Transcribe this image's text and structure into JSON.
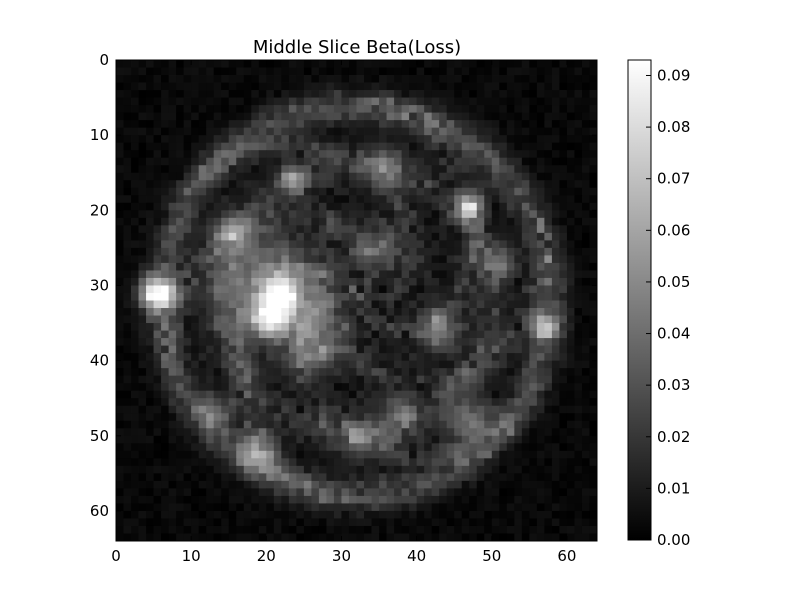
{
  "chart_data": {
    "type": "heatmap",
    "title": "Middle Slice Beta(Loss)",
    "xlabel": "",
    "ylabel": "",
    "colormap": "gray",
    "grid_size": [
      64,
      64
    ],
    "xlim": [
      0,
      64
    ],
    "ylim": [
      64,
      0
    ],
    "x_ticks": [
      0,
      10,
      20,
      30,
      40,
      50,
      60
    ],
    "x_tick_labels": [
      "0",
      "10",
      "20",
      "30",
      "40",
      "50",
      "60"
    ],
    "y_ticks": [
      0,
      10,
      20,
      30,
      40,
      50,
      60
    ],
    "y_tick_labels": [
      "0",
      "10",
      "20",
      "30",
      "40",
      "50",
      "60"
    ],
    "colorbar": {
      "min": 0.0,
      "max": 0.093,
      "ticks": [
        0.0,
        0.01,
        0.02,
        0.03,
        0.04,
        0.05,
        0.06,
        0.07,
        0.08,
        0.09
      ],
      "tick_labels": [
        "0.00",
        "0.01",
        "0.02",
        "0.03",
        "0.04",
        "0.05",
        "0.06",
        "0.07",
        "0.08",
        "0.09"
      ]
    },
    "features": {
      "background_noise_level": 0.006,
      "disk": {
        "center": [
          32,
          32
        ],
        "radius": 27,
        "base_level": 0.017
      },
      "outer_ring": {
        "center": [
          32,
          32
        ],
        "radius": 26,
        "width": 1.6,
        "level": 0.03
      },
      "mid_ring": {
        "center": [
          32,
          32
        ],
        "radius": 18,
        "width": 1.4,
        "level": 0.02
      },
      "blobs": [
        {
          "x": 5.5,
          "y": 31,
          "sigma": 1.6,
          "peak": 0.088
        },
        {
          "x": 22,
          "y": 31.5,
          "sigma": 1.3,
          "peak": 0.08
        },
        {
          "x": 20.5,
          "y": 34.5,
          "sigma": 1.4,
          "peak": 0.07
        },
        {
          "x": 20,
          "y": 30,
          "sigma": 4.5,
          "peak": 0.045
        },
        {
          "x": 25,
          "y": 34,
          "sigma": 3.5,
          "peak": 0.03
        },
        {
          "x": 47,
          "y": 19.5,
          "sigma": 1.2,
          "peak": 0.075
        },
        {
          "x": 57,
          "y": 35.5,
          "sigma": 1.3,
          "peak": 0.06
        },
        {
          "x": 23.5,
          "y": 16,
          "sigma": 1.3,
          "peak": 0.05
        },
        {
          "x": 19,
          "y": 52,
          "sigma": 1.8,
          "peak": 0.045
        },
        {
          "x": 13,
          "y": 47,
          "sigma": 1.6,
          "peak": 0.035
        },
        {
          "x": 47,
          "y": 48,
          "sigma": 2.0,
          "peak": 0.04
        },
        {
          "x": 38,
          "y": 47,
          "sigma": 1.7,
          "peak": 0.03
        },
        {
          "x": 43,
          "y": 36,
          "sigma": 2.0,
          "peak": 0.035
        },
        {
          "x": 51,
          "y": 27,
          "sigma": 1.6,
          "peak": 0.035
        },
        {
          "x": 35,
          "y": 25,
          "sigma": 2.2,
          "peak": 0.03
        },
        {
          "x": 27,
          "y": 39,
          "sigma": 2.0,
          "peak": 0.03
        },
        {
          "x": 36,
          "y": 14,
          "sigma": 2.0,
          "peak": 0.025
        },
        {
          "x": 15,
          "y": 23,
          "sigma": 1.7,
          "peak": 0.035
        },
        {
          "x": 33,
          "y": 50,
          "sigma": 1.8,
          "peak": 0.03
        }
      ]
    }
  }
}
